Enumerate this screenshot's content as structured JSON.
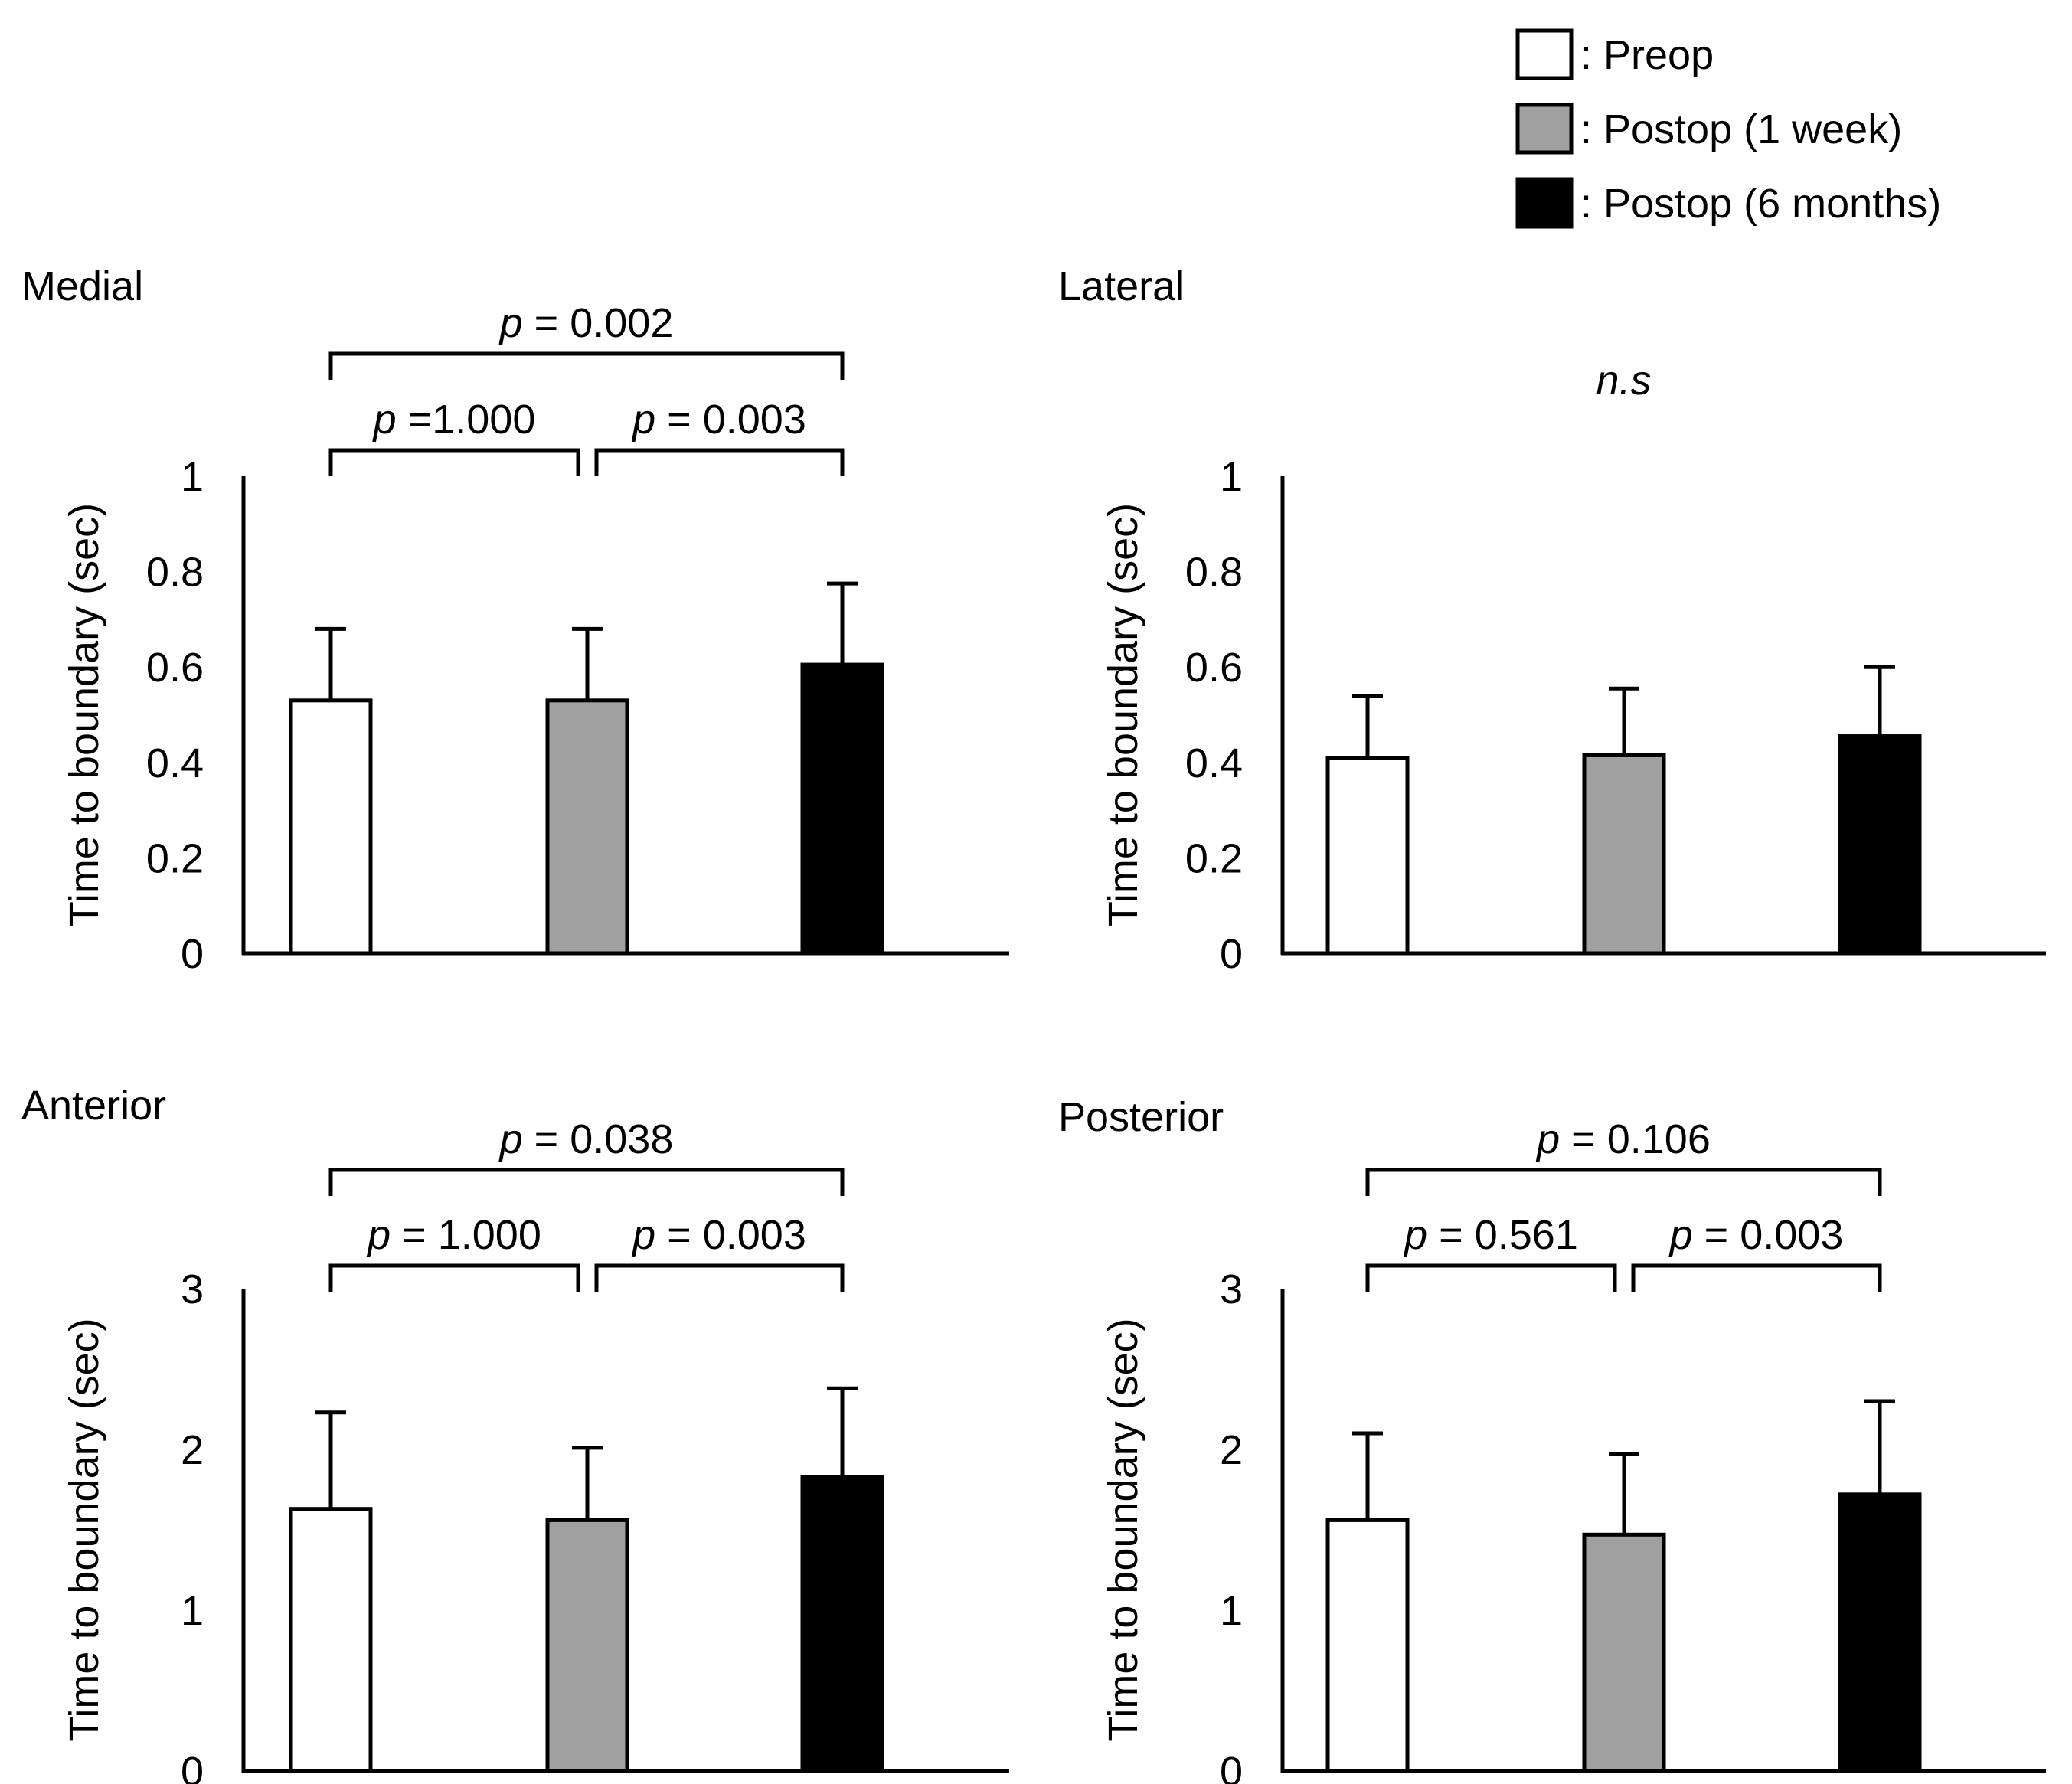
{
  "legend": {
    "entries": [
      {
        "label": ": Preop",
        "color": "#ffffff"
      },
      {
        "label": ": Postop (1 week)",
        "color": "#a0a0a0"
      },
      {
        "label": ": Postop (6 months)",
        "color": "#000000"
      }
    ]
  },
  "chart_data": [
    {
      "type": "bar",
      "title": "Medial",
      "ylabel": "Time to boundary (sec)",
      "xlabel": "",
      "ylim": [
        0,
        1
      ],
      "yticks": [
        "0",
        "0.2",
        "0.4",
        "0.6",
        "0.8",
        "1"
      ],
      "categories": [
        "Preop",
        "Postop (1 week)",
        "Postop (6 months)"
      ],
      "values": [
        0.53,
        0.53,
        0.605
      ],
      "errors": [
        0.15,
        0.15,
        0.17
      ],
      "colors": [
        "#ffffff",
        "#a0a0a0",
        "#000000"
      ],
      "comparisons": [
        {
          "from": 0,
          "to": 2,
          "p_symbol": "p",
          "p_text": " = 0.002",
          "level": "top"
        },
        {
          "from": 0,
          "to": 1,
          "p_symbol": "p",
          "p_text": " =1.000",
          "level": "bottom"
        },
        {
          "from": 1,
          "to": 2,
          "p_symbol": "p",
          "p_text": " = 0.003",
          "level": "bottom"
        }
      ],
      "note": ""
    },
    {
      "type": "bar",
      "title": "Lateral",
      "ylabel": "Time to boundary (sec)",
      "xlabel": "",
      "ylim": [
        0,
        1
      ],
      "yticks": [
        "0",
        "0.2",
        "0.4",
        "0.6",
        "0.8",
        "1"
      ],
      "categories": [
        "Preop",
        "Postop (1 week)",
        "Postop (6 months)"
      ],
      "values": [
        0.41,
        0.415,
        0.455
      ],
      "errors": [
        0.13,
        0.14,
        0.145
      ],
      "colors": [
        "#ffffff",
        "#a0a0a0",
        "#000000"
      ],
      "comparisons": [],
      "note": "n.s"
    },
    {
      "type": "bar",
      "title": "Anterior",
      "ylabel": "Time to boundary (sec)",
      "xlabel": "",
      "ylim": [
        0,
        3
      ],
      "yticks": [
        "0",
        "1",
        "2",
        "3"
      ],
      "categories": [
        "Preop",
        "Postop (1 week)",
        "Postop (6 months)"
      ],
      "values": [
        1.63,
        1.56,
        1.83
      ],
      "errors": [
        0.6,
        0.45,
        0.55
      ],
      "colors": [
        "#ffffff",
        "#a0a0a0",
        "#000000"
      ],
      "comparisons": [
        {
          "from": 0,
          "to": 2,
          "p_symbol": "p",
          "p_text": " = 0.038",
          "level": "top"
        },
        {
          "from": 0,
          "to": 1,
          "p_symbol": "p",
          "p_text": " = 1.000",
          "level": "bottom"
        },
        {
          "from": 1,
          "to": 2,
          "p_symbol": "p",
          "p_text": " = 0.003",
          "level": "bottom"
        }
      ],
      "note": ""
    },
    {
      "type": "bar",
      "title": "Posterior",
      "ylabel": "Time to boundary (sec)",
      "xlabel": "",
      "ylim": [
        0,
        3
      ],
      "yticks": [
        "0",
        "1",
        "2",
        "3"
      ],
      "categories": [
        "Preop",
        "Postop (1 week)",
        "Postop (6 months)"
      ],
      "values": [
        1.56,
        1.47,
        1.72
      ],
      "errors": [
        0.54,
        0.5,
        0.58
      ],
      "colors": [
        "#ffffff",
        "#a0a0a0",
        "#000000"
      ],
      "comparisons": [
        {
          "from": 0,
          "to": 2,
          "p_symbol": "p",
          "p_text": " = 0.106",
          "level": "top"
        },
        {
          "from": 0,
          "to": 1,
          "p_symbol": "p",
          "p_text": " = 0.561",
          "level": "bottom"
        },
        {
          "from": 1,
          "to": 2,
          "p_symbol": "p",
          "p_text": " = 0.003",
          "level": "bottom"
        }
      ],
      "note": ""
    }
  ]
}
